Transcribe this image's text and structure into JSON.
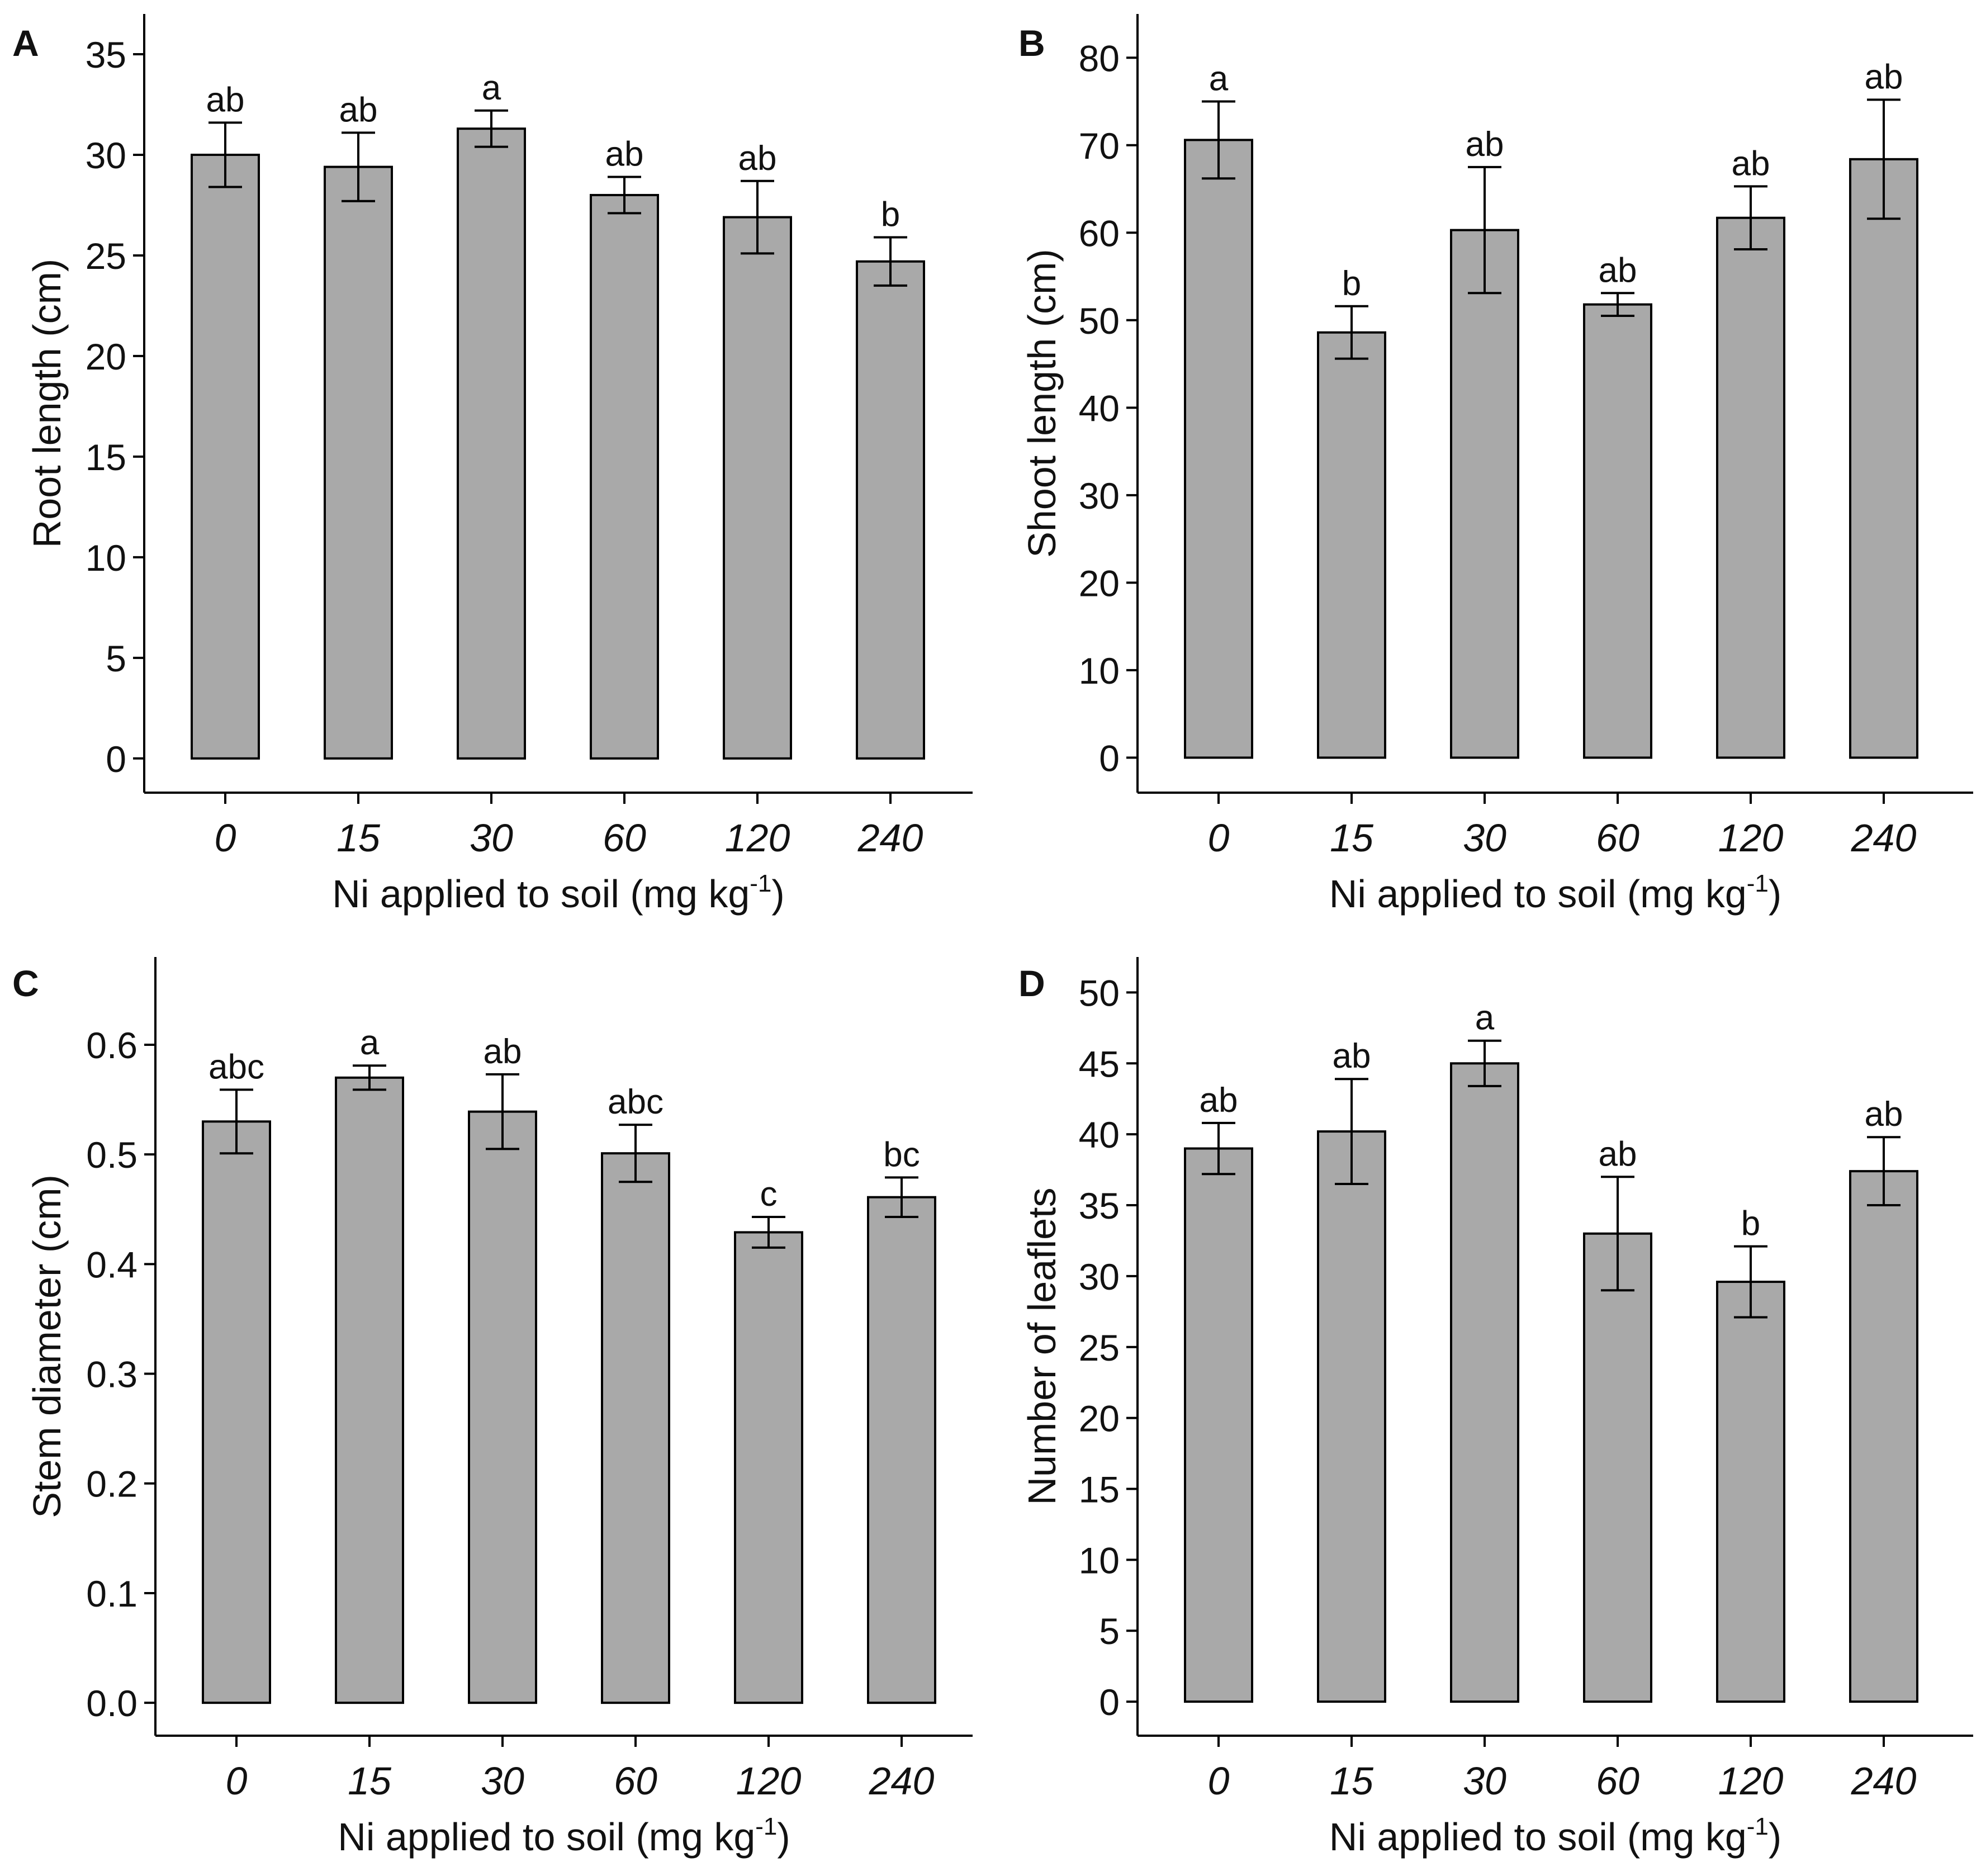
{
  "colors": {
    "bar_fill": "#a9a9a9",
    "stroke": "#000000",
    "background": "#ffffff"
  },
  "chart_data": [
    {
      "panel": "A",
      "type": "bar",
      "xlabel_prefix": "Ni applied to soil (mg kg",
      "xlabel_superscript": "-1",
      "xlabel_suffix": ")",
      "ylabel": "Root length (cm)",
      "categories": [
        "0",
        "15",
        "30",
        "60",
        "120",
        "240"
      ],
      "values": [
        30.0,
        29.4,
        31.3,
        28.0,
        26.9,
        24.7
      ],
      "errors": [
        1.6,
        1.7,
        0.9,
        0.9,
        1.8,
        1.2
      ],
      "letters": [
        "ab",
        "ab",
        "a",
        "ab",
        "ab",
        "b"
      ],
      "yticks": [
        0,
        5,
        10,
        15,
        20,
        25,
        30,
        35
      ],
      "ytick_labels": [
        "0",
        "5",
        "10",
        "15",
        "20",
        "25",
        "30",
        "35"
      ],
      "ylim": [
        -1.7,
        37
      ]
    },
    {
      "panel": "B",
      "type": "bar",
      "xlabel_prefix": "Ni applied to soil (mg kg",
      "xlabel_superscript": "-1",
      "xlabel_suffix": ")",
      "ylabel": "Shoot length (cm)",
      "categories": [
        "0",
        "15",
        "30",
        "60",
        "120",
        "240"
      ],
      "values": [
        70.6,
        48.6,
        60.3,
        51.8,
        61.7,
        68.4
      ],
      "errors": [
        4.4,
        3.0,
        7.2,
        1.3,
        3.6,
        6.8
      ],
      "letters": [
        "a",
        "b",
        "ab",
        "ab",
        "ab",
        "ab"
      ],
      "yticks": [
        0,
        10,
        20,
        30,
        40,
        50,
        60,
        70,
        80
      ],
      "ytick_labels": [
        "0",
        "10",
        "20",
        "30",
        "40",
        "50",
        "60",
        "70",
        "80"
      ],
      "ylim": [
        -4,
        85
      ]
    },
    {
      "panel": "C",
      "type": "bar",
      "xlabel_prefix": "Ni applied to soil (mg kg",
      "xlabel_superscript": "-1",
      "xlabel_suffix": ")",
      "ylabel": "Stem diameter (cm)",
      "categories": [
        "0",
        "15",
        "30",
        "60",
        "120",
        "240"
      ],
      "values": [
        0.53,
        0.57,
        0.539,
        0.501,
        0.429,
        0.461
      ],
      "errors": [
        0.029,
        0.011,
        0.034,
        0.026,
        0.014,
        0.018
      ],
      "letters": [
        "abc",
        "a",
        "ab",
        "abc",
        "c",
        "bc"
      ],
      "yticks": [
        0,
        0.1,
        0.2,
        0.3,
        0.4,
        0.5,
        0.6
      ],
      "ytick_labels": [
        "0.0",
        "0.1",
        "0.2",
        "0.3",
        "0.4",
        "0.5",
        "0.6"
      ],
      "ylim": [
        -0.03,
        0.68
      ]
    },
    {
      "panel": "D",
      "type": "bar",
      "xlabel_prefix": "Ni applied to soil (mg kg",
      "xlabel_superscript": "-1",
      "xlabel_suffix": ")",
      "ylabel": "Number of leaflets",
      "categories": [
        "0",
        "15",
        "30",
        "60",
        "120",
        "240"
      ],
      "values": [
        39.0,
        40.2,
        45.0,
        33.0,
        29.6,
        37.4
      ],
      "errors": [
        1.8,
        3.7,
        1.6,
        4.0,
        2.5,
        2.4
      ],
      "letters": [
        "ab",
        "ab",
        "a",
        "ab",
        "b",
        "ab"
      ],
      "yticks": [
        0,
        5,
        10,
        15,
        20,
        25,
        30,
        35,
        40,
        45,
        50
      ],
      "ytick_labels": [
        "0",
        "5",
        "10",
        "15",
        "20",
        "25",
        "30",
        "35",
        "40",
        "45",
        "50"
      ],
      "ylim": [
        -2.4,
        52.5
      ]
    }
  ]
}
